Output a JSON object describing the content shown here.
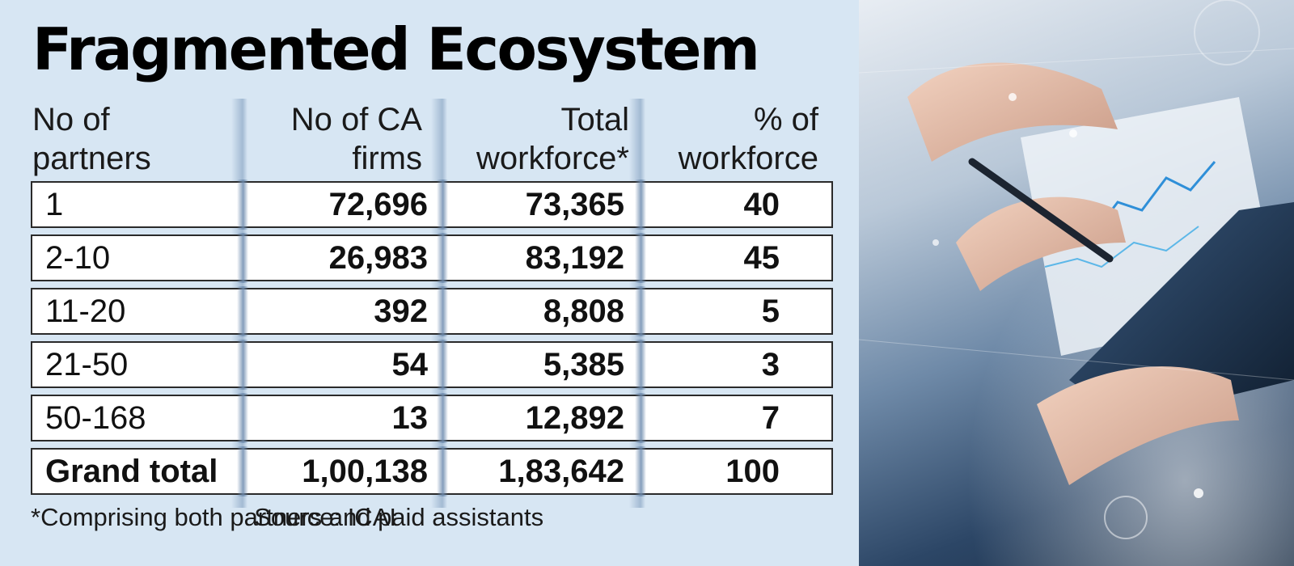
{
  "title": "Fragmented Ecosystem",
  "headers": [
    [
      "No of",
      "partners"
    ],
    [
      "No of CA",
      "firms"
    ],
    [
      "Total",
      "workforce*"
    ],
    [
      "% of",
      "workforce"
    ]
  ],
  "rows": [
    [
      "1",
      "72,696",
      "73,365",
      "40"
    ],
    [
      "2-10",
      "26,983",
      "83,192",
      "45"
    ],
    [
      "11-20",
      "392",
      "8,808",
      "5"
    ],
    [
      "21-50",
      "54",
      "5,385",
      "3"
    ],
    [
      "50-168",
      "13",
      "12,892",
      "7"
    ],
    [
      "Grand total",
      "1,00,138",
      "1,83,642",
      "100"
    ]
  ],
  "footnote": "*Comprising both partners and paid assistants",
  "source": "Source: ICAI",
  "colors": {
    "panel_bg": "#d7e6f3",
    "row_bg": "#ffffff",
    "row_border": "#2a2a2a",
    "text": "#111111"
  },
  "chart_data": {
    "type": "table",
    "title": "Fragmented Ecosystem",
    "columns": [
      "No of partners",
      "No of CA firms",
      "Total workforce*",
      "% of workforce"
    ],
    "rows": [
      [
        "1",
        "72,696",
        "73,365",
        "40"
      ],
      [
        "2-10",
        "26,983",
        "83,192",
        "45"
      ],
      [
        "11-20",
        "392",
        "8,808",
        "5"
      ],
      [
        "21-50",
        "54",
        "5,385",
        "3"
      ],
      [
        "50-168",
        "13",
        "12,892",
        "7"
      ],
      [
        "Grand total",
        "1,00,138",
        "1,83,642",
        "100"
      ]
    ],
    "annotations": [
      "*Comprising both partners and paid assistants",
      "Source: ICAI"
    ]
  }
}
